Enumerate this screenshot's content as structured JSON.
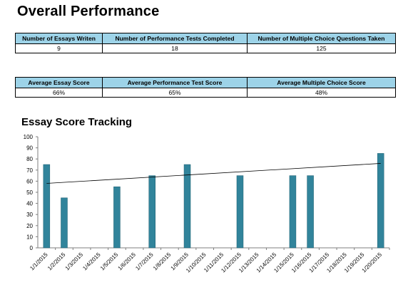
{
  "page": {
    "title": "Overall Performance"
  },
  "table1": {
    "headers": [
      "Number of Essays Writen",
      "Number of Performance Tests Completed",
      "Number of Multiple Choice Questions Taken"
    ],
    "values": [
      "9",
      "18",
      "125"
    ]
  },
  "table2": {
    "headers": [
      "Average Essay Score",
      "Average Performance Test Score",
      "Average Multiple Choice Score"
    ],
    "values": [
      "66%",
      "65%",
      "48%"
    ]
  },
  "colors": {
    "header_bg": "#9dd3e8",
    "bar": "#31849b"
  },
  "chart_data": {
    "type": "bar",
    "title": "Essay Score Tracking",
    "xlabel": "",
    "ylabel": "",
    "ylim": [
      0,
      100
    ],
    "yticks": [
      0,
      10,
      20,
      30,
      40,
      50,
      60,
      70,
      80,
      90,
      100
    ],
    "categories": [
      "1/1/2015",
      "1/2/2015",
      "1/3/2015",
      "1/4/2015",
      "1/5/2015",
      "1/6/2015",
      "1/7/2015",
      "1/8/2015",
      "1/9/2015",
      "1/10/2015",
      "1/11/2015",
      "1/12/2015",
      "1/13/2015",
      "1/14/2015",
      "1/15/2015",
      "1/16/2015",
      "1/17/2015",
      "1/18/2015",
      "1/19/2015",
      "1/20/2015"
    ],
    "values": [
      75,
      45,
      null,
      null,
      55,
      null,
      65,
      null,
      75,
      null,
      null,
      65,
      null,
      null,
      65,
      65,
      null,
      null,
      null,
      85
    ],
    "trendline": {
      "type": "linear",
      "start": 58,
      "end": 76
    },
    "grid": false,
    "legend": "none"
  }
}
